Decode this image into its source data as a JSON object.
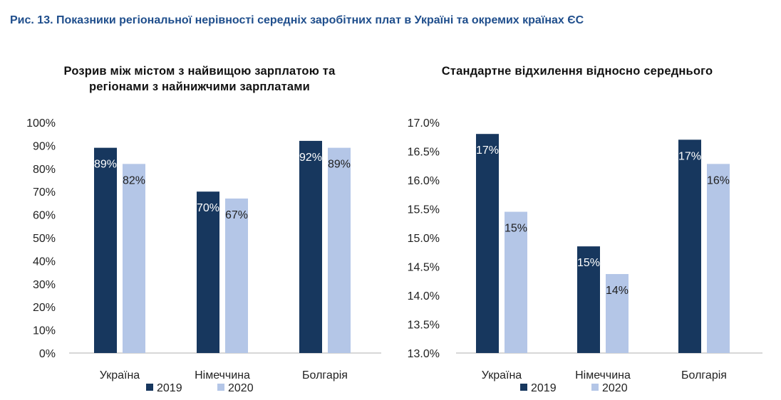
{
  "figure_title": "Рис. 13. Показники регіональної нерівності середніх заробітних плат в Україні та окремих країнах ЄС",
  "colors": {
    "s2019": "#17375e",
    "s2020": "#b4c6e7",
    "axis": "#bfbfbf",
    "title": "#1f4e8c"
  },
  "chart_data": [
    {
      "type": "bar",
      "title_lines": [
        "Розрив між містом з найвищою зарплатою та",
        "регіонами з найнижчими зарплатами"
      ],
      "categories": [
        "Україна",
        "Німеччина",
        "Болгарія"
      ],
      "series": [
        {
          "name": "2019",
          "values": [
            89,
            70,
            92
          ],
          "labels": [
            "89%",
            "70%",
            "92%"
          ]
        },
        {
          "name": "2020",
          "values": [
            82,
            67,
            89
          ],
          "labels": [
            "82%",
            "67%",
            "89%"
          ]
        }
      ],
      "ylim": [
        0,
        100
      ],
      "yticks": [
        "0%",
        "10%",
        "20%",
        "30%",
        "40%",
        "50%",
        "60%",
        "70%",
        "80%",
        "90%",
        "100%"
      ],
      "grid": false,
      "legend": "bottom"
    },
    {
      "type": "bar",
      "title_lines": [
        "Стандартне відхилення відносно середнього"
      ],
      "categories": [
        "Україна",
        "Німеччина",
        "Болгарія"
      ],
      "series": [
        {
          "name": "2019",
          "values": [
            16.8,
            14.85,
            16.7
          ],
          "labels": [
            "17%",
            "15%",
            "17%"
          ]
        },
        {
          "name": "2020",
          "values": [
            15.45,
            14.37,
            16.28
          ],
          "labels": [
            "15%",
            "14%",
            "16%"
          ]
        }
      ],
      "ylim": [
        13.0,
        17.0
      ],
      "yticks": [
        "13.0%",
        "13.5%",
        "14.0%",
        "14.5%",
        "15.0%",
        "15.5%",
        "16.0%",
        "16.5%",
        "17.0%"
      ],
      "grid": false,
      "legend": "bottom"
    }
  ]
}
